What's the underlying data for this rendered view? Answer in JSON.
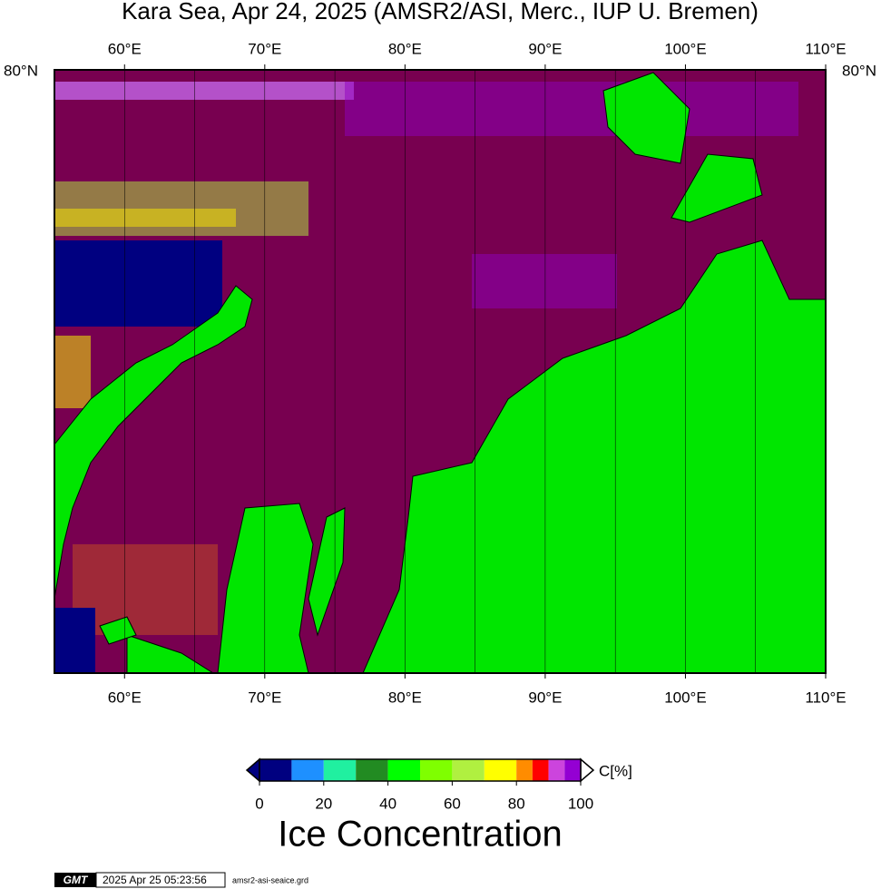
{
  "title": "Kara Sea, Apr 24, 2025 (AMSR2/ASI, Merc., IUP U. Bremen)",
  "map": {
    "xlim": [
      55,
      110
    ],
    "lon_ticks": [
      {
        "value": 60,
        "label": "60°E"
      },
      {
        "value": 70,
        "label": "70°E"
      },
      {
        "value": 80,
        "label": "80°E"
      },
      {
        "value": 90,
        "label": "90°E"
      },
      {
        "value": 100,
        "label": "100°E"
      },
      {
        "value": 110,
        "label": "110°E"
      }
    ],
    "gridlines": [
      65,
      75,
      85,
      95,
      105
    ],
    "lat_tick": {
      "value": 80,
      "label": "80°N"
    },
    "water_color": "#780050",
    "land_color": "#00e600"
  },
  "colorbar": {
    "clim": [
      0,
      100
    ],
    "ticks": [
      0,
      20,
      40,
      60,
      80,
      100
    ],
    "unit": "C[%]",
    "label": "Ice Concentration",
    "segments": [
      {
        "from": 0,
        "to": 10,
        "color": "#000080"
      },
      {
        "from": 10,
        "to": 20,
        "color": "#1e90ff"
      },
      {
        "from": 20,
        "to": 30,
        "color": "#20f0a0"
      },
      {
        "from": 30,
        "to": 40,
        "color": "#228b22"
      },
      {
        "from": 40,
        "to": 50,
        "color": "#00ff00"
      },
      {
        "from": 50,
        "to": 60,
        "color": "#7fff00"
      },
      {
        "from": 60,
        "to": 70,
        "color": "#b0f040"
      },
      {
        "from": 70,
        "to": 80,
        "color": "#ffff00"
      },
      {
        "from": 80,
        "to": 85,
        "color": "#ff8c00"
      },
      {
        "from": 85,
        "to": 90,
        "color": "#ff0000"
      },
      {
        "from": 90,
        "to": 95,
        "color": "#cc44dd"
      },
      {
        "from": 95,
        "to": 100,
        "color": "#9400d3"
      }
    ]
  },
  "footer": {
    "logo": "GMT",
    "timestamp": "2025 Apr 25 05:23:56",
    "file": "amsr2-asi-seaice.grd"
  }
}
